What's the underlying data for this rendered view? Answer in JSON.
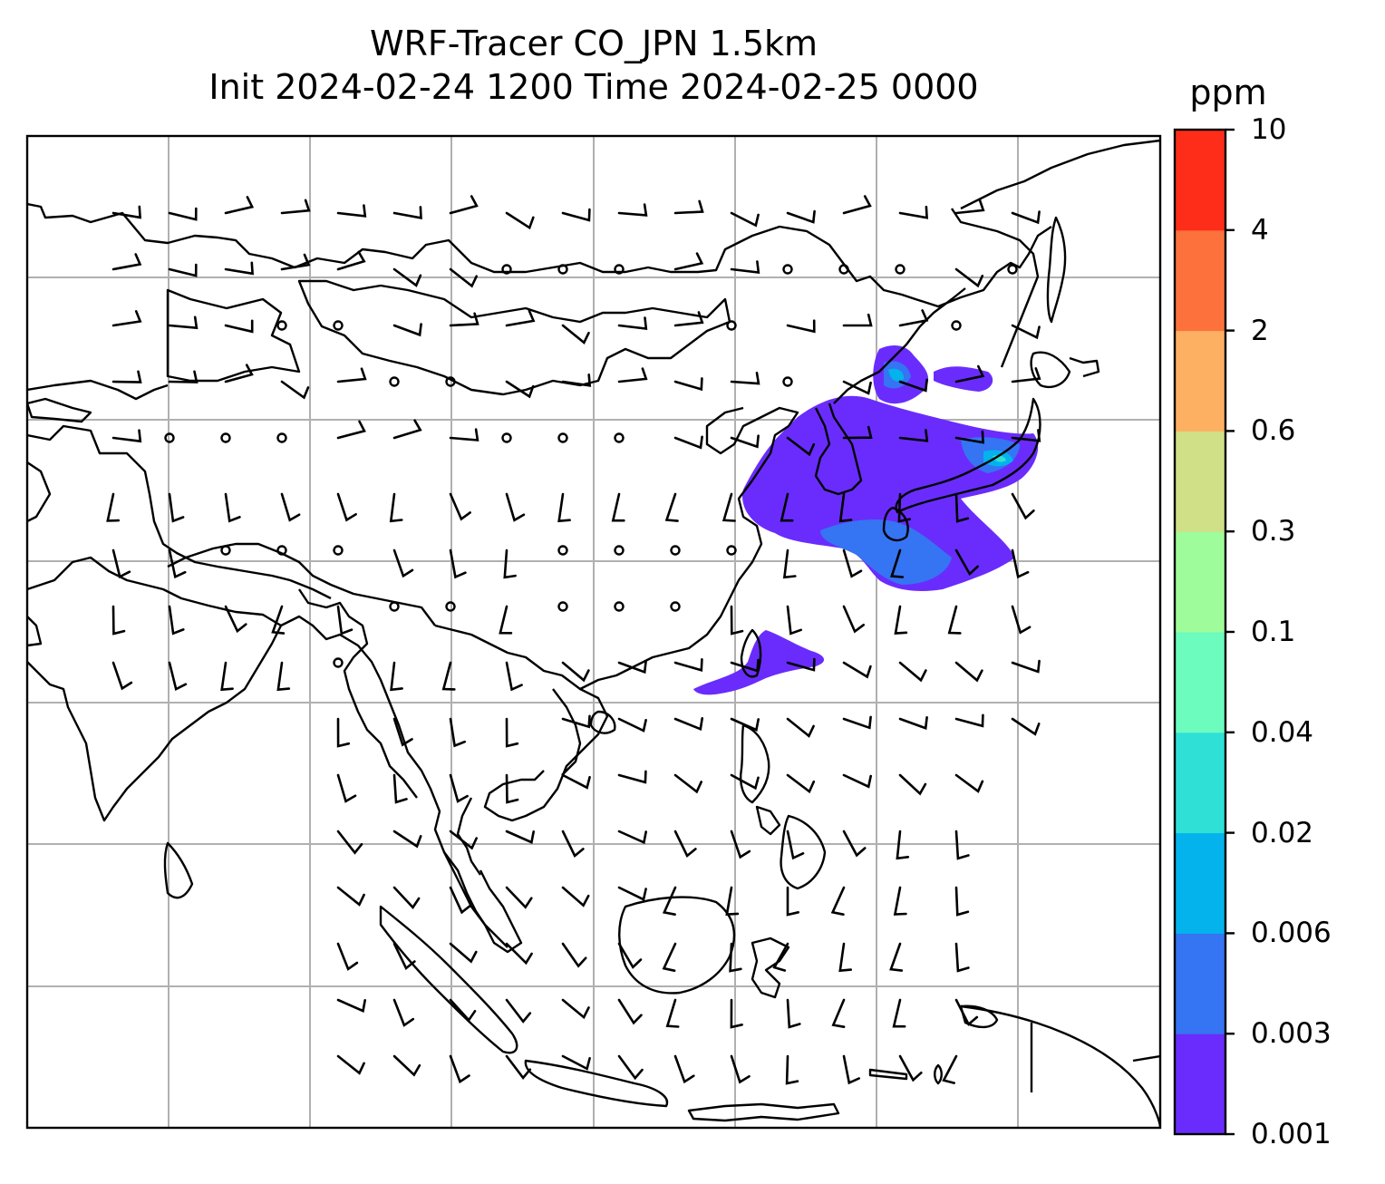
{
  "title": {
    "line1": "WRF-Tracer CO_JPN 1.5km",
    "line2": "Init 2024-02-24 1200 Time 2024-02-25 0000"
  },
  "colorbar": {
    "unit": "ppm",
    "levels": [
      "0.001",
      "0.003",
      "0.006",
      "0.02",
      "0.04",
      "0.1",
      "0.3",
      "0.6",
      "2",
      "4",
      "10"
    ],
    "colors": [
      "#6a2cfc",
      "#3574f2",
      "#04b2ec",
      "#2fe0d6",
      "#6bfcbe",
      "#9ffc9a",
      "#d0e087",
      "#fdb062",
      "#fd723c",
      "#fd2d1a"
    ]
  },
  "map": {
    "colors": {
      "coastline": "#000000",
      "gridline": "#b0b0b0",
      "frame": "#000000",
      "wind": "#000000"
    }
  }
}
